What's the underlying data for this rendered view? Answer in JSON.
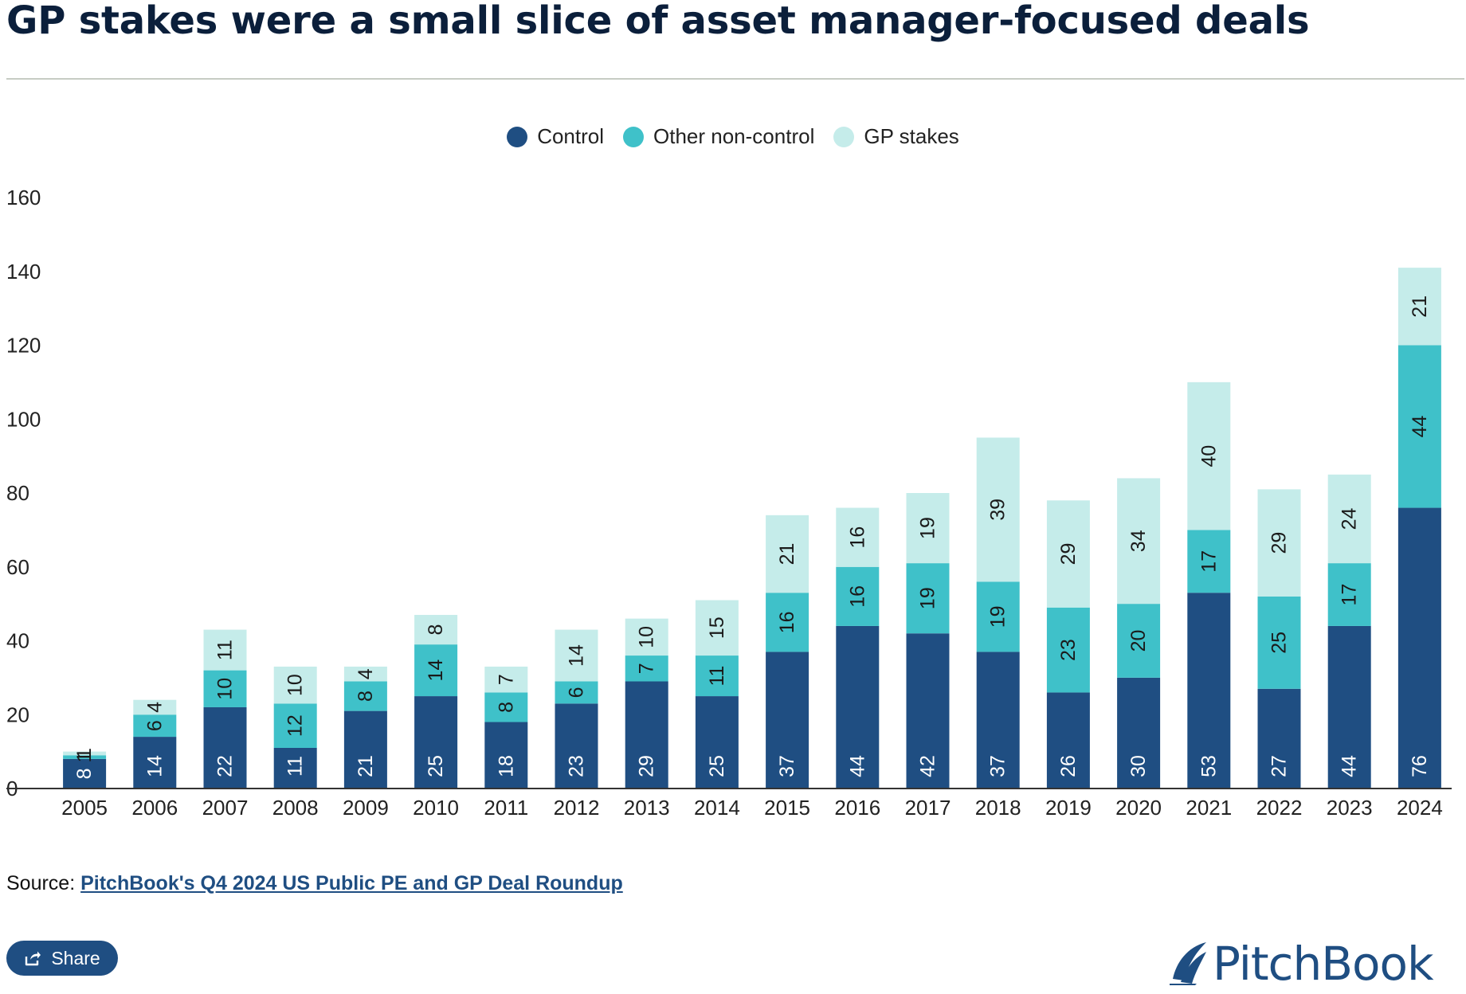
{
  "header": {
    "title": "GP stakes were a small slice of asset manager-focused deals"
  },
  "legend": {
    "items": [
      {
        "label": "Control",
        "color": "#1f4e82"
      },
      {
        "label": "Other non-control",
        "color": "#3fc1c9"
      },
      {
        "label": "GP stakes",
        "color": "#c5ecea"
      }
    ]
  },
  "chart_data": {
    "type": "bar",
    "stacked": true,
    "title": "GP stakes were a small slice of asset manager-focused deals",
    "xlabel": "",
    "ylabel": "",
    "ylim": [
      0,
      160
    ],
    "yticks": [
      0,
      20,
      40,
      60,
      80,
      100,
      120,
      140,
      160
    ],
    "grid": false,
    "legend_position": "top-center",
    "categories": [
      "2005",
      "2006",
      "2007",
      "2008",
      "2009",
      "2010",
      "2011",
      "2012",
      "2013",
      "2014",
      "2015",
      "2016",
      "2017",
      "2018",
      "2019",
      "2020",
      "2021",
      "2022",
      "2023",
      "2024"
    ],
    "series": [
      {
        "name": "Control",
        "color": "#1f4e82",
        "label_color": "#ffffff",
        "values": [
          8,
          14,
          22,
          11,
          21,
          25,
          18,
          23,
          29,
          25,
          37,
          44,
          42,
          37,
          26,
          30,
          53,
          27,
          44,
          76
        ]
      },
      {
        "name": "Other non-control",
        "color": "#3fc1c9",
        "label_color": "#1a1a1a",
        "values": [
          1,
          6,
          10,
          12,
          8,
          14,
          8,
          6,
          7,
          11,
          16,
          16,
          19,
          19,
          23,
          20,
          17,
          25,
          17,
          44
        ]
      },
      {
        "name": "GP stakes",
        "color": "#c5ecea",
        "label_color": "#1a1a1a",
        "values": [
          1,
          4,
          11,
          10,
          4,
          8,
          7,
          14,
          10,
          15,
          21,
          16,
          19,
          39,
          29,
          34,
          40,
          29,
          24,
          21
        ]
      }
    ]
  },
  "footer": {
    "source_prefix": "Source: ",
    "source_link": "PitchBook's Q4 2024 US Public PE and GP Deal Roundup",
    "share_label": "Share",
    "brand": "PitchBook"
  }
}
